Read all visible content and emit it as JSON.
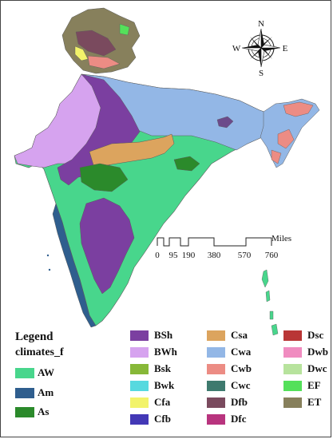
{
  "legend": {
    "title": "Legend",
    "field": "climates_f",
    "left_items": [
      {
        "code": "AW",
        "color": "#48d68c"
      },
      {
        "code": "Am",
        "color": "#2f5e8e"
      },
      {
        "code": "As",
        "color": "#2b8a2b"
      }
    ],
    "grid_items": [
      [
        {
          "code": "BSh",
          "color": "#7b3fa0"
        },
        {
          "code": "Csa",
          "color": "#dca45e"
        },
        {
          "code": "Dsc",
          "color": "#b93636"
        }
      ],
      [
        {
          "code": "BWh",
          "color": "#d6a3ef"
        },
        {
          "code": "Cwa",
          "color": "#93b7e6"
        },
        {
          "code": "Dwb",
          "color": "#f08cc0"
        }
      ],
      [
        {
          "code": "Bsk",
          "color": "#87b838"
        },
        {
          "code": "Cwb",
          "color": "#ec8c84"
        },
        {
          "code": "Dwc",
          "color": "#b7e39d"
        }
      ],
      [
        {
          "code": "Bwk",
          "color": "#57d9df"
        },
        {
          "code": "Cwc",
          "color": "#3e7a6e"
        },
        {
          "code": "EF",
          "color": "#54e05a"
        }
      ],
      [
        {
          "code": "Cfa",
          "color": "#f2f36a"
        },
        {
          "code": "Dfb",
          "color": "#7a4a5e"
        },
        {
          "code": "ET",
          "color": "#87805c"
        }
      ],
      [
        {
          "code": "Cfb",
          "color": "#4338b6"
        },
        {
          "code": "Dfc",
          "color": "#b8347e"
        },
        null
      ]
    ]
  },
  "compass": {
    "n": "N",
    "s": "S",
    "e": "E",
    "w": "W"
  },
  "scale_bar": {
    "unit": "Miles",
    "ticks": [
      "0",
      "95",
      "190",
      "380",
      "570",
      "760"
    ]
  }
}
